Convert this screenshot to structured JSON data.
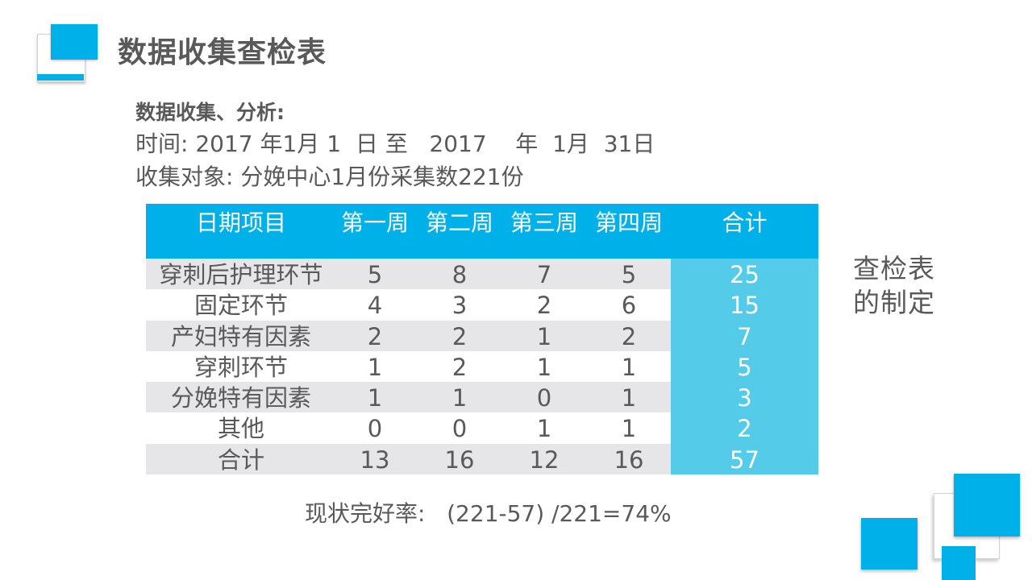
{
  "title": "数据收集查检表",
  "subheading": "数据收集、分析:",
  "time_line": "时间: 2017 年1月 1  日 至   2017    年  1月  31日",
  "object_line": "收集对象: 分娩中心1月份采集数221份",
  "table": {
    "headers": [
      "日期项目",
      "第一周",
      "第二周",
      "第三周",
      "第四周",
      "合计"
    ],
    "rows": [
      [
        "穿刺后护理环节",
        "5",
        "8",
        "7",
        "5",
        "25"
      ],
      [
        "固定环节",
        "4",
        "3",
        "2",
        "6",
        "15"
      ],
      [
        "产妇特有因素",
        "2",
        "2",
        "1",
        "2",
        "7"
      ],
      [
        "穿刺环节",
        "1",
        "2",
        "1",
        "1",
        "5"
      ],
      [
        "分娩特有因素",
        "1",
        "1",
        "0",
        "1",
        "3"
      ],
      [
        "其他",
        "0",
        "0",
        "1",
        "1",
        "2"
      ],
      [
        "合计",
        "13",
        "16",
        "12",
        "16",
        "57"
      ]
    ]
  },
  "side_note": [
    "查检表",
    "的制定"
  ],
  "formula": "现状完好率:   (221-57) /221=74%",
  "colors": {
    "accent": "#00b0e8",
    "total_column": "#53cbe9",
    "shaded_row": "#e6e6e8",
    "text": "#595959"
  }
}
